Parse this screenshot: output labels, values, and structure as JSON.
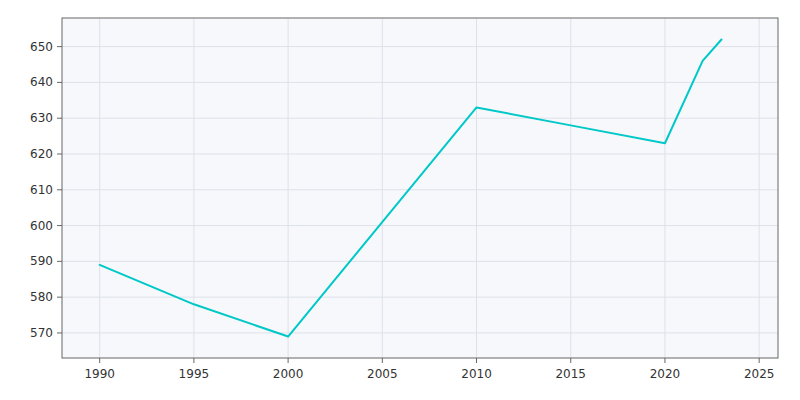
{
  "chart_data": {
    "type": "line",
    "x": [
      1990,
      1995,
      2000,
      2010,
      2015,
      2020,
      2022,
      2023
    ],
    "values": [
      589,
      578,
      569,
      633,
      628,
      623,
      646,
      652
    ],
    "color": "#00C8C8",
    "xlim": [
      1988,
      2026
    ],
    "ylim": [
      563,
      658
    ],
    "xticks": [
      1990,
      1995,
      2000,
      2005,
      2010,
      2015,
      2020,
      2025
    ],
    "yticks": [
      570,
      580,
      590,
      600,
      610,
      620,
      630,
      640,
      650
    ],
    "grid": true
  }
}
